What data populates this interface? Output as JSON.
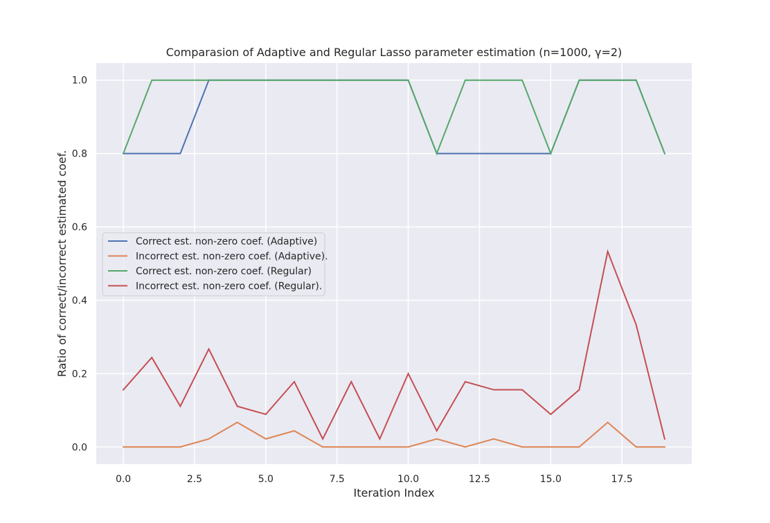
{
  "chart_data": {
    "type": "line",
    "title": "Comparasion of Adaptive and Regular Lasso parameter estimation (n=1000, γ=2)",
    "xlabel": "Iteration Index",
    "ylabel": "Ratio of correct/incorrect estimated coef.",
    "xlim": [
      -0.95,
      19.95
    ],
    "ylim": [
      -0.0467,
      1.0467
    ],
    "xticks": [
      0.0,
      2.5,
      5.0,
      7.5,
      10.0,
      12.5,
      15.0,
      17.5
    ],
    "xtick_labels": [
      "0.0",
      "2.5",
      "5.0",
      "7.5",
      "10.0",
      "12.5",
      "15.0",
      "17.5"
    ],
    "yticks": [
      0.0,
      0.2,
      0.4,
      0.6,
      0.8,
      1.0
    ],
    "ytick_labels": [
      "0.0",
      "0.2",
      "0.4",
      "0.6",
      "0.8",
      "1.0"
    ],
    "grid": true,
    "legend_position": "center-left",
    "x": [
      0,
      1,
      2,
      3,
      4,
      5,
      6,
      7,
      8,
      9,
      10,
      11,
      12,
      13,
      14,
      15,
      16,
      17,
      18,
      19
    ],
    "series": [
      {
        "name": "Correct est. non-zero coef. (Adaptive)",
        "color": "#4c72b0",
        "values": [
          0.8,
          0.8,
          0.8,
          1.0,
          1.0,
          1.0,
          1.0,
          1.0,
          1.0,
          1.0,
          1.0,
          0.8,
          0.8,
          0.8,
          0.8,
          0.8,
          1.0,
          1.0,
          1.0,
          0.8
        ]
      },
      {
        "name": "Incorrect est. non-zero coef. (Adaptive).",
        "color": "#dd8452",
        "values": [
          0.0,
          0.0,
          0.0,
          0.022,
          0.067,
          0.022,
          0.044,
          0.0,
          0.0,
          0.0,
          0.0,
          0.022,
          0.0,
          0.022,
          0.0,
          0.0,
          0.0,
          0.067,
          0.0,
          0.0
        ]
      },
      {
        "name": "Correct est. non-zero coef. (Regular)",
        "color": "#55a868",
        "values": [
          0.8,
          1.0,
          1.0,
          1.0,
          1.0,
          1.0,
          1.0,
          1.0,
          1.0,
          1.0,
          1.0,
          0.8,
          1.0,
          1.0,
          1.0,
          0.8,
          1.0,
          1.0,
          1.0,
          0.8
        ]
      },
      {
        "name": "Incorrect est. non-zero coef. (Regular).",
        "color": "#c44e52",
        "values": [
          0.156,
          0.244,
          0.111,
          0.267,
          0.111,
          0.089,
          0.178,
          0.022,
          0.178,
          0.022,
          0.2,
          0.044,
          0.178,
          0.156,
          0.156,
          0.089,
          0.156,
          0.533,
          0.333,
          0.022
        ]
      }
    ]
  }
}
